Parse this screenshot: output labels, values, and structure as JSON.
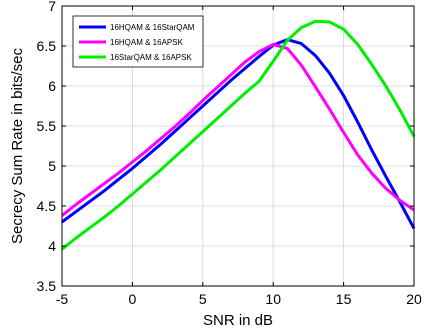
{
  "chart_data": {
    "type": "line",
    "title": "",
    "xlabel": "SNR in dB",
    "ylabel": "Secrecy Sum Rate in bits/sec",
    "xlim": [
      -5,
      20
    ],
    "ylim": [
      3.5,
      7
    ],
    "xticks": [
      -5,
      0,
      5,
      10,
      15,
      20
    ],
    "yticks": [
      3.5,
      4,
      4.5,
      5,
      5.5,
      6,
      6.5,
      7
    ],
    "grid": true,
    "legend_position": "top-left",
    "x": [
      -5,
      -4,
      -3,
      -2,
      -1,
      0,
      1,
      2,
      3,
      4,
      5,
      6,
      7,
      8,
      9,
      10,
      11,
      12,
      13,
      14,
      15,
      16,
      17,
      18,
      19,
      20
    ],
    "series": [
      {
        "name": "16HQAM & 16StarQAM",
        "color": "#0000ff",
        "values": [
          4.3,
          4.43,
          4.56,
          4.69,
          4.83,
          4.97,
          5.12,
          5.27,
          5.43,
          5.59,
          5.75,
          5.91,
          6.07,
          6.22,
          6.37,
          6.51,
          6.58,
          6.53,
          6.38,
          6.16,
          5.88,
          5.55,
          5.2,
          4.87,
          4.55,
          4.22
        ]
      },
      {
        "name": "16HQAM & 16APSK",
        "color": "#ff00ff",
        "values": [
          4.38,
          4.52,
          4.65,
          4.78,
          4.91,
          5.05,
          5.19,
          5.34,
          5.49,
          5.65,
          5.82,
          5.98,
          6.14,
          6.3,
          6.43,
          6.52,
          6.47,
          6.26,
          5.99,
          5.71,
          5.42,
          5.14,
          4.91,
          4.72,
          4.57,
          4.45
        ]
      },
      {
        "name": "16StarQAM & 16APSK",
        "color": "#00ee00",
        "values": [
          3.96,
          4.1,
          4.23,
          4.36,
          4.5,
          4.65,
          4.8,
          4.95,
          5.11,
          5.27,
          5.43,
          5.59,
          5.75,
          5.91,
          6.06,
          6.31,
          6.57,
          6.73,
          6.81,
          6.8,
          6.71,
          6.52,
          6.27,
          6.0,
          5.7,
          5.37
        ]
      }
    ]
  }
}
